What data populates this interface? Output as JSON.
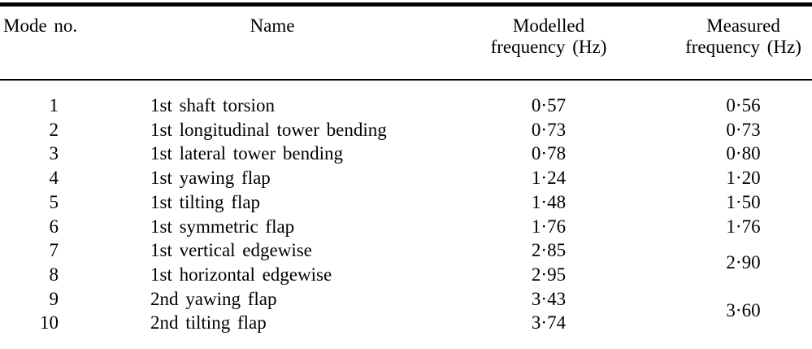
{
  "table": {
    "headers": {
      "mode": "Mode no.",
      "name": "Name",
      "modelled_line1": "Modelled",
      "modelled_line2": "frequency (Hz)",
      "measured_line1": "Measured",
      "measured_line2": "frequency (Hz)"
    },
    "rows": [
      {
        "mode": "1",
        "name": "1st shaft torsion",
        "modelled": "0·57",
        "measured": "0·56"
      },
      {
        "mode": "2",
        "name": "1st longitudinal tower bending",
        "modelled": "0·73",
        "measured": "0·73"
      },
      {
        "mode": "3",
        "name": "1st lateral tower bending",
        "modelled": "0·78",
        "measured": "0·80"
      },
      {
        "mode": "4",
        "name": "1st yawing flap",
        "modelled": "1·24",
        "measured": "1·20"
      },
      {
        "mode": "5",
        "name": "1st tilting flap",
        "modelled": "1·48",
        "measured": "1·50"
      },
      {
        "mode": "6",
        "name": "1st symmetric flap",
        "modelled": "1·76",
        "measured": "1·76"
      },
      {
        "mode": "7",
        "name": "1st vertical edgewise",
        "modelled": "2·85",
        "measured": "2·90",
        "measured_spans_rows": 2
      },
      {
        "mode": "8",
        "name": "1st horizontal edgewise",
        "modelled": "2·95",
        "measured_merged_with_row_above": true
      },
      {
        "mode": "9",
        "name": "2nd yawing flap",
        "modelled": "3·43",
        "measured": "3·60",
        "measured_spans_rows": 2
      },
      {
        "mode": "10",
        "name": "2nd tilting flap",
        "modelled": "3·74",
        "measured_merged_with_row_above": true
      }
    ]
  },
  "chart_data": {
    "type": "table",
    "columns": [
      "Mode no.",
      "Name",
      "Modelled frequency (Hz)",
      "Measured frequency (Hz)"
    ],
    "mode_no": [
      1,
      2,
      3,
      4,
      5,
      6,
      7,
      8,
      9,
      10
    ],
    "name": [
      "1st shaft torsion",
      "1st longitudinal tower bending",
      "1st lateral tower bending",
      "1st yawing flap",
      "1st tilting flap",
      "1st symmetric flap",
      "1st vertical edgewise",
      "1st horizontal edgewise",
      "2nd yawing flap",
      "2nd tilting flap"
    ],
    "modelled_frequency_hz": [
      0.57,
      0.73,
      0.78,
      1.24,
      1.48,
      1.76,
      2.85,
      2.95,
      3.43,
      3.74
    ],
    "measured_frequency_hz": [
      0.56,
      0.73,
      0.8,
      1.2,
      1.5,
      1.76,
      2.9,
      2.9,
      3.6,
      3.6
    ],
    "measured_merged_mode_pairs": [
      [
        7,
        8
      ],
      [
        9,
        10
      ]
    ]
  }
}
